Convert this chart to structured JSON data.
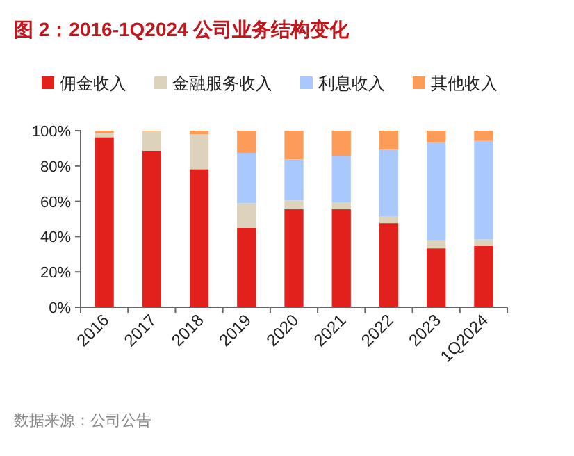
{
  "chart_data": {
    "type": "bar",
    "title": "图 2：2016-1Q2024 公司业务结构变化",
    "categories": [
      "2016",
      "2017",
      "2018",
      "2019",
      "2020",
      "2021",
      "2022",
      "2023",
      "1Q2024"
    ],
    "stacked": true,
    "series": [
      {
        "name": "佣金收入",
        "color": "#e2211c",
        "values": [
          96.3,
          88.7,
          78.2,
          45.0,
          55.5,
          55.5,
          47.6,
          33.4,
          34.7
        ]
      },
      {
        "name": "金融服务收入",
        "color": "#ddd3bd",
        "values": [
          2.4,
          11.0,
          19.7,
          13.9,
          5.0,
          3.7,
          3.7,
          4.5,
          3.7
        ]
      },
      {
        "name": "利息收入",
        "color": "#a9c9fd",
        "values": [
          0,
          0,
          0,
          28.5,
          23.2,
          26.6,
          37.9,
          55.5,
          55.8
        ]
      },
      {
        "name": "其他收入",
        "color": "#fd9b59",
        "values": [
          1.3,
          0.3,
          2.1,
          12.6,
          16.3,
          14.2,
          10.8,
          6.6,
          5.8
        ]
      }
    ],
    "ylim": [
      0,
      100
    ],
    "yticks": [
      {
        "value": 0,
        "label": "0%"
      },
      {
        "value": 20,
        "label": "20%"
      },
      {
        "value": 40,
        "label": "40%"
      },
      {
        "value": 60,
        "label": "60%"
      },
      {
        "value": 80,
        "label": "80%"
      },
      {
        "value": 100,
        "label": "100%"
      }
    ],
    "grid": false,
    "legend": "top",
    "annotations": [
      "数据来源：公司公告"
    ]
  }
}
